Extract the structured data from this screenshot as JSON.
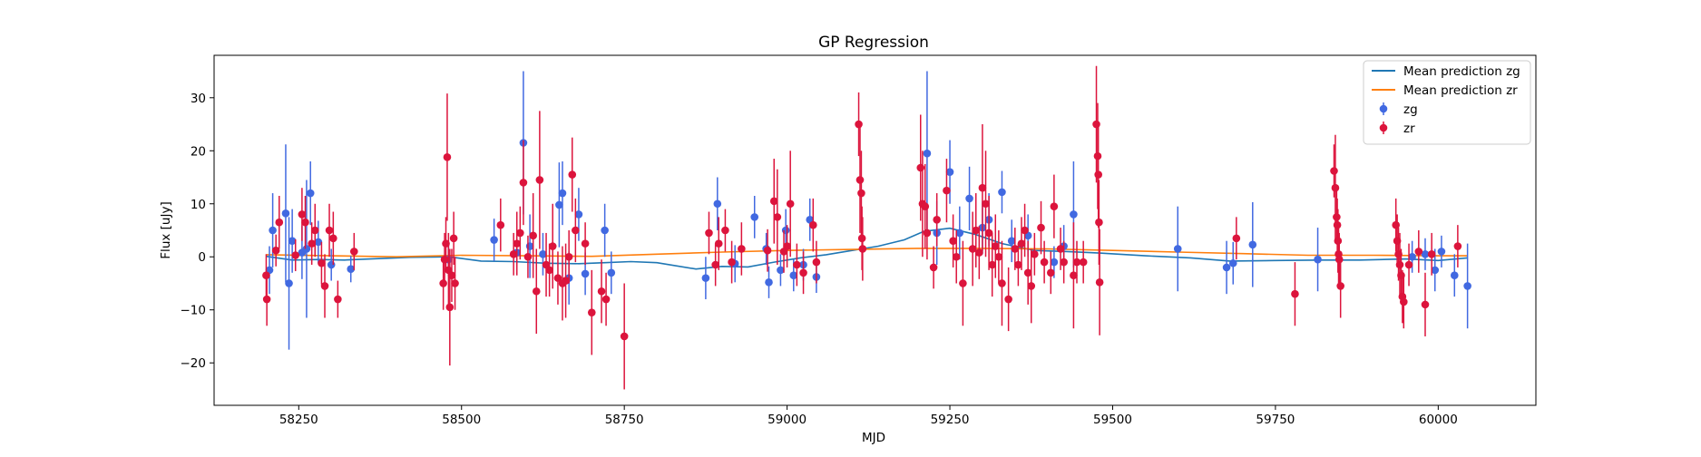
{
  "chart_data": {
    "type": "scatter",
    "title": "GP Regression",
    "xlabel": "MJD",
    "ylabel": "Flux [uJy]",
    "xlim": [
      58120,
      60150
    ],
    "ylim": [
      -28,
      38
    ],
    "xticks": [
      58250,
      58500,
      58750,
      59000,
      59250,
      59500,
      59750,
      60000
    ],
    "yticks": [
      -20,
      -10,
      0,
      10,
      20,
      30
    ],
    "grid": false,
    "legend_position": "top-right",
    "series": [
      {
        "name": "Mean prediction zg",
        "kind": "line",
        "color": "#1f77b4",
        "points": [
          [
            58200,
            0.1
          ],
          [
            58240,
            -0.6
          ],
          [
            58280,
            -0.5
          ],
          [
            58320,
            -0.6
          ],
          [
            58360,
            -0.4
          ],
          [
            58420,
            -0.1
          ],
          [
            58480,
            0.0
          ],
          [
            58530,
            -0.8
          ],
          [
            58580,
            -0.9
          ],
          [
            58630,
            -1.2
          ],
          [
            58680,
            -1.3
          ],
          [
            58720,
            -1.1
          ],
          [
            58760,
            -0.9
          ],
          [
            58800,
            -1.1
          ],
          [
            58860,
            -2.3
          ],
          [
            58900,
            -1.8
          ],
          [
            58940,
            -1.9
          ],
          [
            58980,
            -1.0
          ],
          [
            59020,
            -0.2
          ],
          [
            59060,
            0.4
          ],
          [
            59100,
            1.2
          ],
          [
            59140,
            2.0
          ],
          [
            59180,
            3.2
          ],
          [
            59210,
            4.8
          ],
          [
            59250,
            5.4
          ],
          [
            59290,
            4.2
          ],
          [
            59330,
            2.5
          ],
          [
            59380,
            1.2
          ],
          [
            59430,
            1.0
          ],
          [
            59480,
            0.7
          ],
          [
            59550,
            0.2
          ],
          [
            59620,
            -0.2
          ],
          [
            59680,
            -0.8
          ],
          [
            59750,
            -0.7
          ],
          [
            59820,
            -0.6
          ],
          [
            59880,
            -0.6
          ],
          [
            59950,
            -0.4
          ],
          [
            60000,
            -0.7
          ],
          [
            60045,
            -0.2
          ]
        ]
      },
      {
        "name": "Mean prediction zr",
        "kind": "line",
        "color": "#ff7f0e",
        "points": [
          [
            58200,
            0.4
          ],
          [
            58300,
            0.2
          ],
          [
            58400,
            0.0
          ],
          [
            58500,
            0.3
          ],
          [
            58600,
            0.2
          ],
          [
            58700,
            0.1
          ],
          [
            58800,
            0.5
          ],
          [
            58900,
            0.9
          ],
          [
            59000,
            1.2
          ],
          [
            59100,
            1.4
          ],
          [
            59200,
            1.6
          ],
          [
            59300,
            1.6
          ],
          [
            59400,
            1.5
          ],
          [
            59500,
            1.2
          ],
          [
            59600,
            0.9
          ],
          [
            59700,
            0.6
          ],
          [
            59800,
            0.3
          ],
          [
            59900,
            0.3
          ],
          [
            60000,
            0.2
          ],
          [
            60045,
            0.2
          ]
        ]
      },
      {
        "name": "zg",
        "kind": "errorbar",
        "color": "#4169e1",
        "points": [
          [
            58205,
            -2.5,
            4.5
          ],
          [
            58210,
            5,
            7
          ],
          [
            58230,
            8.2,
            13
          ],
          [
            58235,
            -5,
            12.5
          ],
          [
            58240,
            3,
            6
          ],
          [
            58255,
            0.8,
            5
          ],
          [
            58262,
            1.5,
            13
          ],
          [
            58268,
            12,
            6
          ],
          [
            58280,
            2.8,
            4
          ],
          [
            58300,
            -1.5,
            3
          ],
          [
            58330,
            -2.3,
            2.5
          ],
          [
            58480,
            -0.5,
            3
          ],
          [
            58550,
            3.2,
            4
          ],
          [
            58585,
            0.8,
            4
          ],
          [
            58595,
            21.5,
            13.5
          ],
          [
            58605,
            2,
            6
          ],
          [
            58625,
            0.5,
            4
          ],
          [
            58650,
            9.8,
            8
          ],
          [
            58655,
            12,
            6
          ],
          [
            58665,
            -4,
            5
          ],
          [
            58680,
            8,
            5
          ],
          [
            58690,
            -3.2,
            4
          ],
          [
            58720,
            5,
            5
          ],
          [
            58730,
            -3,
            4
          ],
          [
            58875,
            -4,
            4
          ],
          [
            58893,
            10,
            5
          ],
          [
            58920,
            -1.3,
            3.5
          ],
          [
            58950,
            7.5,
            4
          ],
          [
            58968,
            1.5,
            3
          ],
          [
            58972,
            -4.8,
            3
          ],
          [
            58990,
            -2.5,
            3
          ],
          [
            58998,
            5,
            4
          ],
          [
            59010,
            -3.5,
            3
          ],
          [
            59025,
            -1.5,
            3
          ],
          [
            59035,
            7,
            4
          ],
          [
            59045,
            -3.8,
            3
          ],
          [
            59215,
            19.5,
            15.5
          ],
          [
            59230,
            4.5,
            6
          ],
          [
            59250,
            16,
            6
          ],
          [
            59265,
            4.5,
            5
          ],
          [
            59280,
            11,
            6
          ],
          [
            59300,
            5.5,
            5
          ],
          [
            59310,
            7,
            5
          ],
          [
            59330,
            12.2,
            4
          ],
          [
            59345,
            3,
            4
          ],
          [
            59370,
            4,
            4
          ],
          [
            59410,
            -1,
            3
          ],
          [
            59425,
            2,
            4
          ],
          [
            59440,
            8,
            10
          ],
          [
            59600,
            1.5,
            8
          ],
          [
            59675,
            -2,
            5
          ],
          [
            59685,
            -1.2,
            4
          ],
          [
            59715,
            2.3,
            8
          ],
          [
            59815,
            -0.5,
            6
          ],
          [
            59960,
            0,
            3
          ],
          [
            59980,
            0.5,
            3
          ],
          [
            59995,
            -2.5,
            4
          ],
          [
            60005,
            1,
            3
          ],
          [
            60025,
            -3.5,
            4
          ],
          [
            60045,
            -5.5,
            8
          ]
        ]
      },
      {
        "name": "zr",
        "kind": "errorbar",
        "color": "#dc143c",
        "points": [
          [
            58200,
            -3.5,
            4
          ],
          [
            58201,
            -8,
            5
          ],
          [
            58215,
            1.2,
            3
          ],
          [
            58220,
            6.5,
            5
          ],
          [
            58245,
            0.3,
            3
          ],
          [
            58255,
            8,
            5
          ],
          [
            58260,
            6.5,
            5
          ],
          [
            58270,
            2.5,
            4
          ],
          [
            58275,
            5,
            5
          ],
          [
            58285,
            -1.2,
            4
          ],
          [
            58290,
            -5.5,
            6
          ],
          [
            58297,
            5,
            5
          ],
          [
            58303,
            3.5,
            5
          ],
          [
            58310,
            -8,
            3.5
          ],
          [
            58335,
            1,
            3.5
          ],
          [
            58472,
            -5,
            5
          ],
          [
            58474,
            -0.5,
            5
          ],
          [
            58476,
            2.5,
            5
          ],
          [
            58478,
            18.8,
            12
          ],
          [
            58480,
            -2.5,
            7
          ],
          [
            58482,
            -9.5,
            11
          ],
          [
            58485,
            -3.5,
            5
          ],
          [
            58488,
            3.5,
            5
          ],
          [
            58490,
            -5,
            5
          ],
          [
            58560,
            6,
            5
          ],
          [
            58580,
            0.5,
            4
          ],
          [
            58585,
            2.5,
            6
          ],
          [
            58590,
            4.5,
            5
          ],
          [
            58595,
            14,
            8
          ],
          [
            58602,
            0,
            4
          ],
          [
            58610,
            4,
            8
          ],
          [
            58615,
            -6.5,
            8
          ],
          [
            58620,
            14.5,
            13
          ],
          [
            58630,
            -1.5,
            6
          ],
          [
            58635,
            -2.5,
            5
          ],
          [
            58640,
            2,
            8
          ],
          [
            58648,
            -4,
            5
          ],
          [
            58655,
            -5,
            7
          ],
          [
            58660,
            -4.5,
            7
          ],
          [
            58665,
            0,
            5
          ],
          [
            58670,
            15.5,
            7
          ],
          [
            58675,
            5,
            6
          ],
          [
            58690,
            2.5,
            4
          ],
          [
            58700,
            -10.5,
            8
          ],
          [
            58715,
            -6.5,
            6
          ],
          [
            58722,
            -8,
            5
          ],
          [
            58750,
            -15,
            10
          ],
          [
            58880,
            4.5,
            4
          ],
          [
            58890,
            -1.5,
            4
          ],
          [
            58895,
            2.5,
            5
          ],
          [
            58905,
            5,
            4
          ],
          [
            58915,
            -1,
            4
          ],
          [
            58930,
            1.5,
            5
          ],
          [
            58970,
            1.2,
            4
          ],
          [
            58980,
            10.5,
            8
          ],
          [
            58985,
            7.5,
            9
          ],
          [
            58995,
            1,
            4
          ],
          [
            59000,
            2,
            4
          ],
          [
            59005,
            10,
            10
          ],
          [
            59015,
            -1.5,
            4
          ],
          [
            59025,
            -3,
            4
          ],
          [
            59040,
            6,
            5
          ],
          [
            59045,
            -1,
            4
          ],
          [
            59110,
            25,
            6
          ],
          [
            59112,
            14.5,
            10
          ],
          [
            59114,
            12,
            8
          ],
          [
            59115,
            3.5,
            6
          ],
          [
            59116,
            1.5,
            6
          ],
          [
            59205,
            16.8,
            10
          ],
          [
            59208,
            10,
            10
          ],
          [
            59212,
            9.5,
            8
          ],
          [
            59215,
            4.5,
            5
          ],
          [
            59225,
            -2,
            4
          ],
          [
            59230,
            7,
            5
          ],
          [
            59245,
            12.5,
            6
          ],
          [
            59255,
            3,
            5
          ],
          [
            59260,
            0,
            5
          ],
          [
            59270,
            -5,
            8
          ],
          [
            59285,
            1.5,
            7
          ],
          [
            59290,
            5,
            7
          ],
          [
            59295,
            0.8,
            5
          ],
          [
            59300,
            13,
            12
          ],
          [
            59305,
            10,
            10
          ],
          [
            59310,
            4.5,
            7
          ],
          [
            59315,
            -1.5,
            6
          ],
          [
            59320,
            2,
            6
          ],
          [
            59325,
            0,
            5
          ],
          [
            59330,
            -5,
            8
          ],
          [
            59340,
            -8,
            6
          ],
          [
            59350,
            1.5,
            4
          ],
          [
            59355,
            -1.5,
            4
          ],
          [
            59360,
            2.5,
            5
          ],
          [
            59365,
            5,
            5
          ],
          [
            59370,
            -3,
            6
          ],
          [
            59375,
            -5.5,
            7
          ],
          [
            59380,
            0.5,
            4
          ],
          [
            59390,
            5.5,
            5
          ],
          [
            59395,
            -1,
            4
          ],
          [
            59405,
            -3,
            4
          ],
          [
            59410,
            9.5,
            6
          ],
          [
            59420,
            1.5,
            4
          ],
          [
            59425,
            -1,
            4
          ],
          [
            59440,
            -3.5,
            10
          ],
          [
            59445,
            -1,
            4
          ],
          [
            59455,
            -1,
            4
          ],
          [
            59475,
            25,
            11
          ],
          [
            59477,
            19,
            10
          ],
          [
            59478,
            15.5,
            10
          ],
          [
            59479,
            6.5,
            8
          ],
          [
            59480,
            -4.8,
            10
          ],
          [
            59690,
            3.5,
            4
          ],
          [
            59780,
            -7,
            6
          ],
          [
            59840,
            16.2,
            5
          ],
          [
            59842,
            13,
            10
          ],
          [
            59844,
            7.5,
            5
          ],
          [
            59845,
            6,
            5
          ],
          [
            59846,
            3,
            6
          ],
          [
            59847,
            0.5,
            6
          ],
          [
            59848,
            -0.5,
            5
          ],
          [
            59850,
            -5.5,
            6
          ],
          [
            59935,
            6,
            5
          ],
          [
            59937,
            3,
            5
          ],
          [
            59939,
            0.5,
            5
          ],
          [
            59941,
            -1.5,
            6
          ],
          [
            59943,
            -3.5,
            5
          ],
          [
            59945,
            -7.5,
            5
          ],
          [
            59947,
            -8.5,
            5
          ],
          [
            59955,
            -1.5,
            4
          ],
          [
            59970,
            1,
            4
          ],
          [
            59980,
            -9,
            6
          ],
          [
            59990,
            0.5,
            4
          ],
          [
            60030,
            2,
            4
          ]
        ]
      }
    ]
  }
}
